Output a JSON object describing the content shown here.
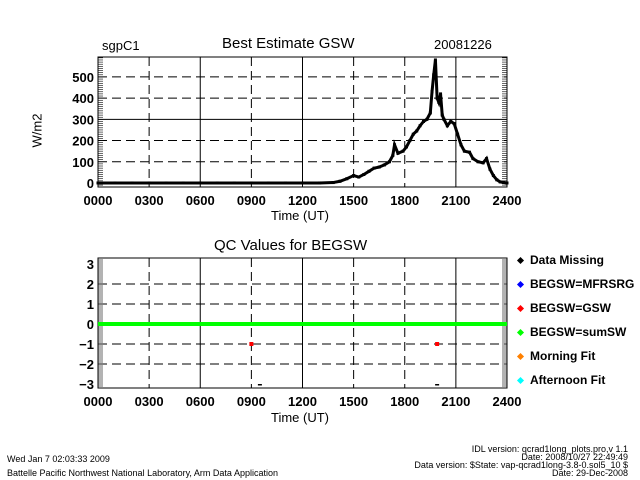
{
  "footer": {
    "run_date": "Wed Jan  7 02:03:33 2009",
    "institution": "Battelle Pacific Northwest National Laboratory, Arm Data Application",
    "idl_version": "IDL version: qcrad1long_plots.pro,v 1.1",
    "idl_date": "Date: 2008/10/27 22:49:49",
    "data_version": "Data version: $State: vap-qcrad1long-3.8-0.sol5_10 $",
    "data_date": "Date: 29-Dec-2008"
  },
  "chart_data": [
    {
      "type": "scatter",
      "title": "Best Estimate GSW",
      "site": "sgpC1",
      "date": "20081226",
      "xlabel": "Time (UT)",
      "ylabel": "W/m2",
      "xlim": [
        0,
        24
      ],
      "ylim": [
        -19,
        594
      ],
      "xticks": [
        "0000",
        "0300",
        "0600",
        "0900",
        "1200",
        "1500",
        "1800",
        "2100",
        "2400"
      ],
      "yticks": [
        "0",
        "100",
        "200",
        "300",
        "400",
        "500"
      ],
      "grid": true,
      "points": [
        [
          0,
          0
        ],
        [
          1,
          0
        ],
        [
          2,
          0
        ],
        [
          3,
          0
        ],
        [
          4,
          0
        ],
        [
          5,
          0
        ],
        [
          6,
          0
        ],
        [
          7,
          0
        ],
        [
          8,
          0
        ],
        [
          9,
          0
        ],
        [
          10,
          0
        ],
        [
          11,
          0
        ],
        [
          12,
          0
        ],
        [
          13,
          0
        ],
        [
          13.8,
          2
        ],
        [
          14.2,
          8
        ],
        [
          14.6,
          20
        ],
        [
          15.0,
          35
        ],
        [
          15.3,
          28
        ],
        [
          15.6,
          40
        ],
        [
          15.9,
          55
        ],
        [
          16.2,
          70
        ],
        [
          16.5,
          75
        ],
        [
          16.8,
          85
        ],
        [
          17.1,
          100
        ],
        [
          17.3,
          130
        ],
        [
          17.4,
          180
        ],
        [
          17.6,
          140
        ],
        [
          17.9,
          150
        ],
        [
          18.1,
          170
        ],
        [
          18.3,
          200
        ],
        [
          18.5,
          230
        ],
        [
          18.7,
          245
        ],
        [
          18.9,
          270
        ],
        [
          19.1,
          290
        ],
        [
          19.3,
          300
        ],
        [
          19.5,
          330
        ],
        [
          19.6,
          430
        ],
        [
          19.7,
          510
        ],
        [
          19.8,
          580
        ],
        [
          19.9,
          400
        ],
        [
          20.0,
          380
        ],
        [
          20.1,
          420
        ],
        [
          20.2,
          320
        ],
        [
          20.3,
          300
        ],
        [
          20.5,
          270
        ],
        [
          20.7,
          290
        ],
        [
          20.9,
          280
        ],
        [
          21.1,
          230
        ],
        [
          21.3,
          180
        ],
        [
          21.5,
          150
        ],
        [
          21.8,
          145
        ],
        [
          22.0,
          115
        ],
        [
          22.3,
          100
        ],
        [
          22.6,
          95
        ],
        [
          22.8,
          115
        ],
        [
          23.0,
          65
        ],
        [
          23.2,
          35
        ],
        [
          23.4,
          15
        ],
        [
          23.6,
          5
        ],
        [
          23.8,
          2
        ],
        [
          24,
          0
        ]
      ]
    },
    {
      "type": "scatter",
      "title": "QC Values for BEGSW",
      "xlabel": "Time (UT)",
      "xlim": [
        0,
        24
      ],
      "ylim": [
        -3.2,
        3.3
      ],
      "xticks": [
        "0000",
        "0300",
        "0600",
        "0900",
        "1200",
        "1500",
        "1800",
        "2100",
        "2400"
      ],
      "yticks": [
        "3",
        "2",
        "1",
        "0",
        "-1",
        "-2",
        "-3"
      ],
      "grid": true,
      "series": [
        {
          "name": "Data Missing",
          "color": "#000000",
          "points": [
            [
              9.5,
              -3.1
            ],
            [
              19.9,
              -3.1
            ]
          ]
        },
        {
          "name": "BEGSW=MFRSRG",
          "color": "#0000ff",
          "points": []
        },
        {
          "name": "BEGSW=GSW",
          "color": "#ff0000",
          "points": [
            [
              9.0,
              -1
            ],
            [
              19.9,
              -1
            ]
          ]
        },
        {
          "name": "BEGSW=sumSW",
          "color": "#00ff00",
          "line": [
            [
              0,
              0
            ],
            [
              24,
              0
            ]
          ]
        },
        {
          "name": "Morning Fit",
          "color": "#ff8000",
          "points": []
        },
        {
          "name": "Afternoon Fit",
          "color": "#00ffff",
          "points": []
        }
      ]
    }
  ]
}
